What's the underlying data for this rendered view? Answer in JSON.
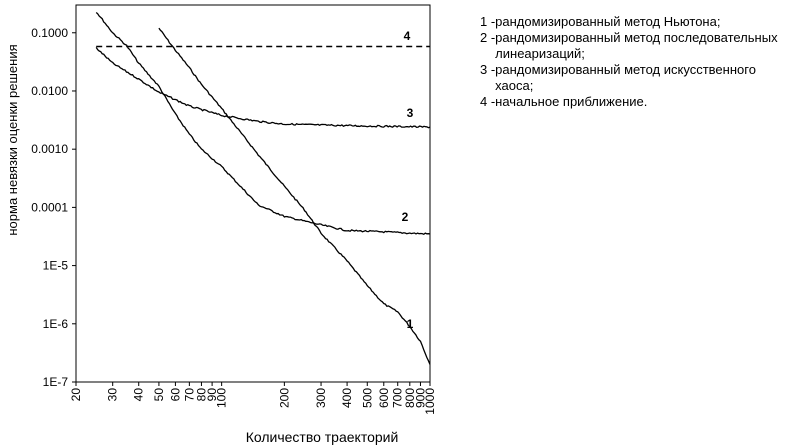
{
  "chart_data": {
    "type": "line",
    "xlabel": "Количество траекторий",
    "ylabel": "норма невязки оценки решения",
    "x_scale": "log",
    "y_scale": "log",
    "xlim": [
      20,
      1000
    ],
    "ylim": [
      1e-07,
      0.3
    ],
    "grid": false,
    "x_ticks": [
      {
        "value": 20,
        "label": "20"
      },
      {
        "value": 30,
        "label": "30"
      },
      {
        "value": 40,
        "label": "40"
      },
      {
        "value": 50,
        "label": "50"
      },
      {
        "value": 60,
        "label": "60"
      },
      {
        "value": 70,
        "label": "70"
      },
      {
        "value": 80,
        "label": "80"
      },
      {
        "value": 90,
        "label": "90"
      },
      {
        "value": 100,
        "label": "100"
      },
      {
        "value": 200,
        "label": "200"
      },
      {
        "value": 300,
        "label": "300"
      },
      {
        "value": 400,
        "label": "400"
      },
      {
        "value": 500,
        "label": "500"
      },
      {
        "value": 600,
        "label": "600"
      },
      {
        "value": 700,
        "label": "700"
      },
      {
        "value": 800,
        "label": "800"
      },
      {
        "value": 900,
        "label": "900"
      },
      {
        "value": 1000,
        "label": "1000"
      }
    ],
    "y_ticks": [
      {
        "value": 0.1,
        "label": "0.1000"
      },
      {
        "value": 0.01,
        "label": "0.0100"
      },
      {
        "value": 0.001,
        "label": "0.0010"
      },
      {
        "value": 0.0001,
        "label": "0.0001"
      },
      {
        "value": 1e-05,
        "label": "1E-5"
      },
      {
        "value": 1e-06,
        "label": "1E-6"
      },
      {
        "value": 1e-07,
        "label": "1E-7"
      }
    ],
    "series": [
      {
        "label": "1",
        "style": "solid",
        "points": [
          [
            50,
            0.12
          ],
          [
            60,
            0.05
          ],
          [
            70,
            0.025
          ],
          [
            80,
            0.013
          ],
          [
            100,
            0.005
          ],
          [
            150,
            0.0008
          ],
          [
            200,
            0.00023
          ],
          [
            250,
            9e-05
          ],
          [
            300,
            3.6e-05
          ],
          [
            400,
            1.2e-05
          ],
          [
            500,
            4.5e-06
          ],
          [
            600,
            2.2e-06
          ],
          [
            700,
            1.6e-06
          ],
          [
            800,
            9e-07
          ],
          [
            900,
            5e-07
          ],
          [
            1000,
            2e-07
          ]
        ]
      },
      {
        "label": "2",
        "style": "solid",
        "points": [
          [
            25,
            0.23
          ],
          [
            30,
            0.1
          ],
          [
            35,
            0.06
          ],
          [
            40,
            0.03
          ],
          [
            50,
            0.012
          ],
          [
            60,
            0.004
          ],
          [
            70,
            0.0018
          ],
          [
            80,
            0.001
          ],
          [
            100,
            0.0005
          ],
          [
            150,
            0.00011
          ],
          [
            200,
            7e-05
          ],
          [
            300,
            5e-05
          ],
          [
            400,
            4e-05
          ],
          [
            600,
            3.8e-05
          ],
          [
            800,
            3.6e-05
          ],
          [
            1000,
            3.5e-05
          ]
        ]
      },
      {
        "label": "3",
        "style": "solid",
        "points": [
          [
            25,
            0.055
          ],
          [
            30,
            0.03
          ],
          [
            40,
            0.016
          ],
          [
            50,
            0.0095
          ],
          [
            70,
            0.0055
          ],
          [
            100,
            0.0038
          ],
          [
            150,
            0.003
          ],
          [
            200,
            0.0027
          ],
          [
            300,
            0.0026
          ],
          [
            500,
            0.0025
          ],
          [
            1000,
            0.0024
          ]
        ]
      },
      {
        "label": "4",
        "style": "dashed",
        "points": [
          [
            25,
            0.058
          ],
          [
            1000,
            0.058
          ]
        ]
      }
    ]
  },
  "legend": [
    {
      "key": "1 - ",
      "text": "рандомизированный метод Ньютона;"
    },
    {
      "key": "2 - ",
      "text": "рандомизированный метод последовательных линеаризаций;"
    },
    {
      "key": "3 - ",
      "text": "рандомизированный метод искусственного хаоса;"
    },
    {
      "key": "4 - ",
      "text": "начальное приближение."
    }
  ]
}
